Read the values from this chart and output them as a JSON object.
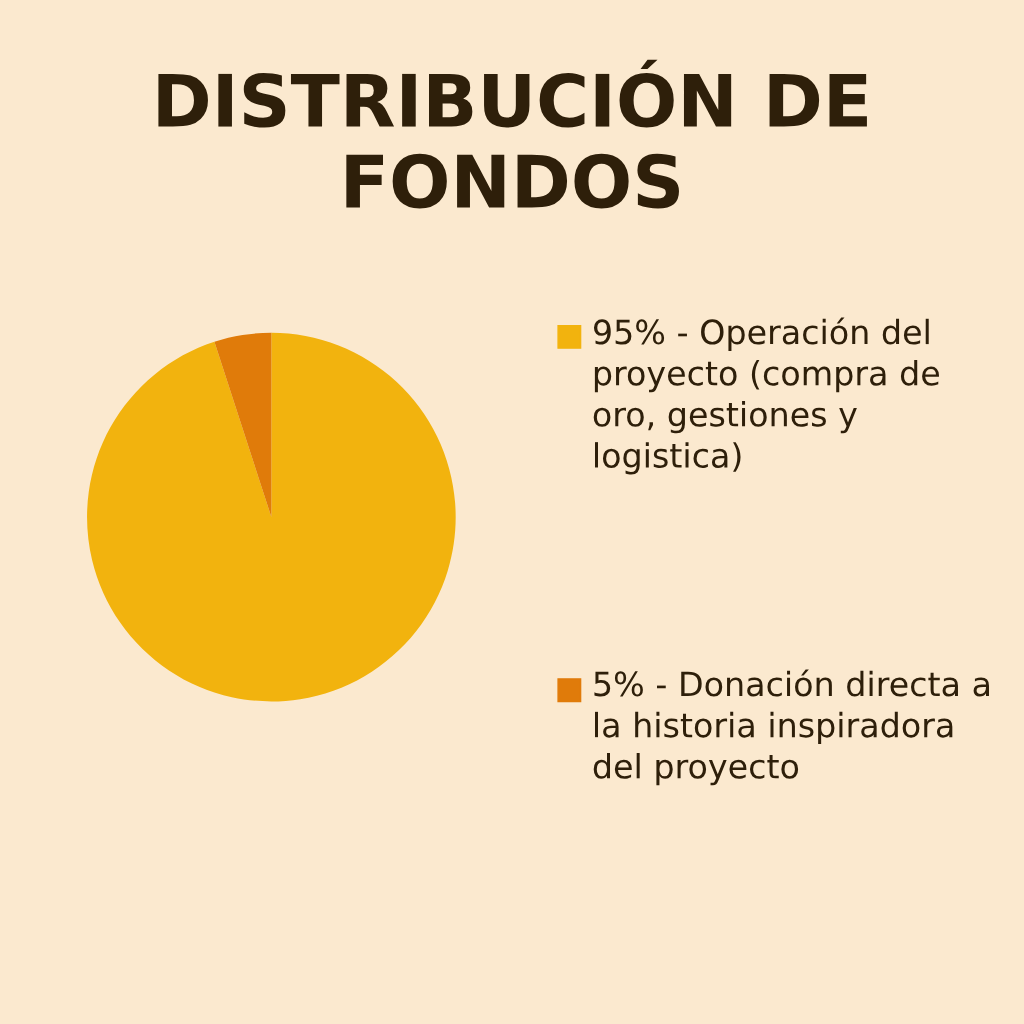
{
  "chart_data": {
    "type": "pie",
    "title": "DISTRIBUCIÓN DE FONDOS",
    "categories": [
      "Operación del proyecto (compra de oro, gestiones y logistica)",
      "Donación directa a la historia inspiradora del proyecto"
    ],
    "values": [
      95,
      5
    ],
    "value_labels": [
      "95%",
      "5%"
    ],
    "colors": [
      "#f2b30e",
      "#e07b0a"
    ],
    "legend": "right"
  }
}
